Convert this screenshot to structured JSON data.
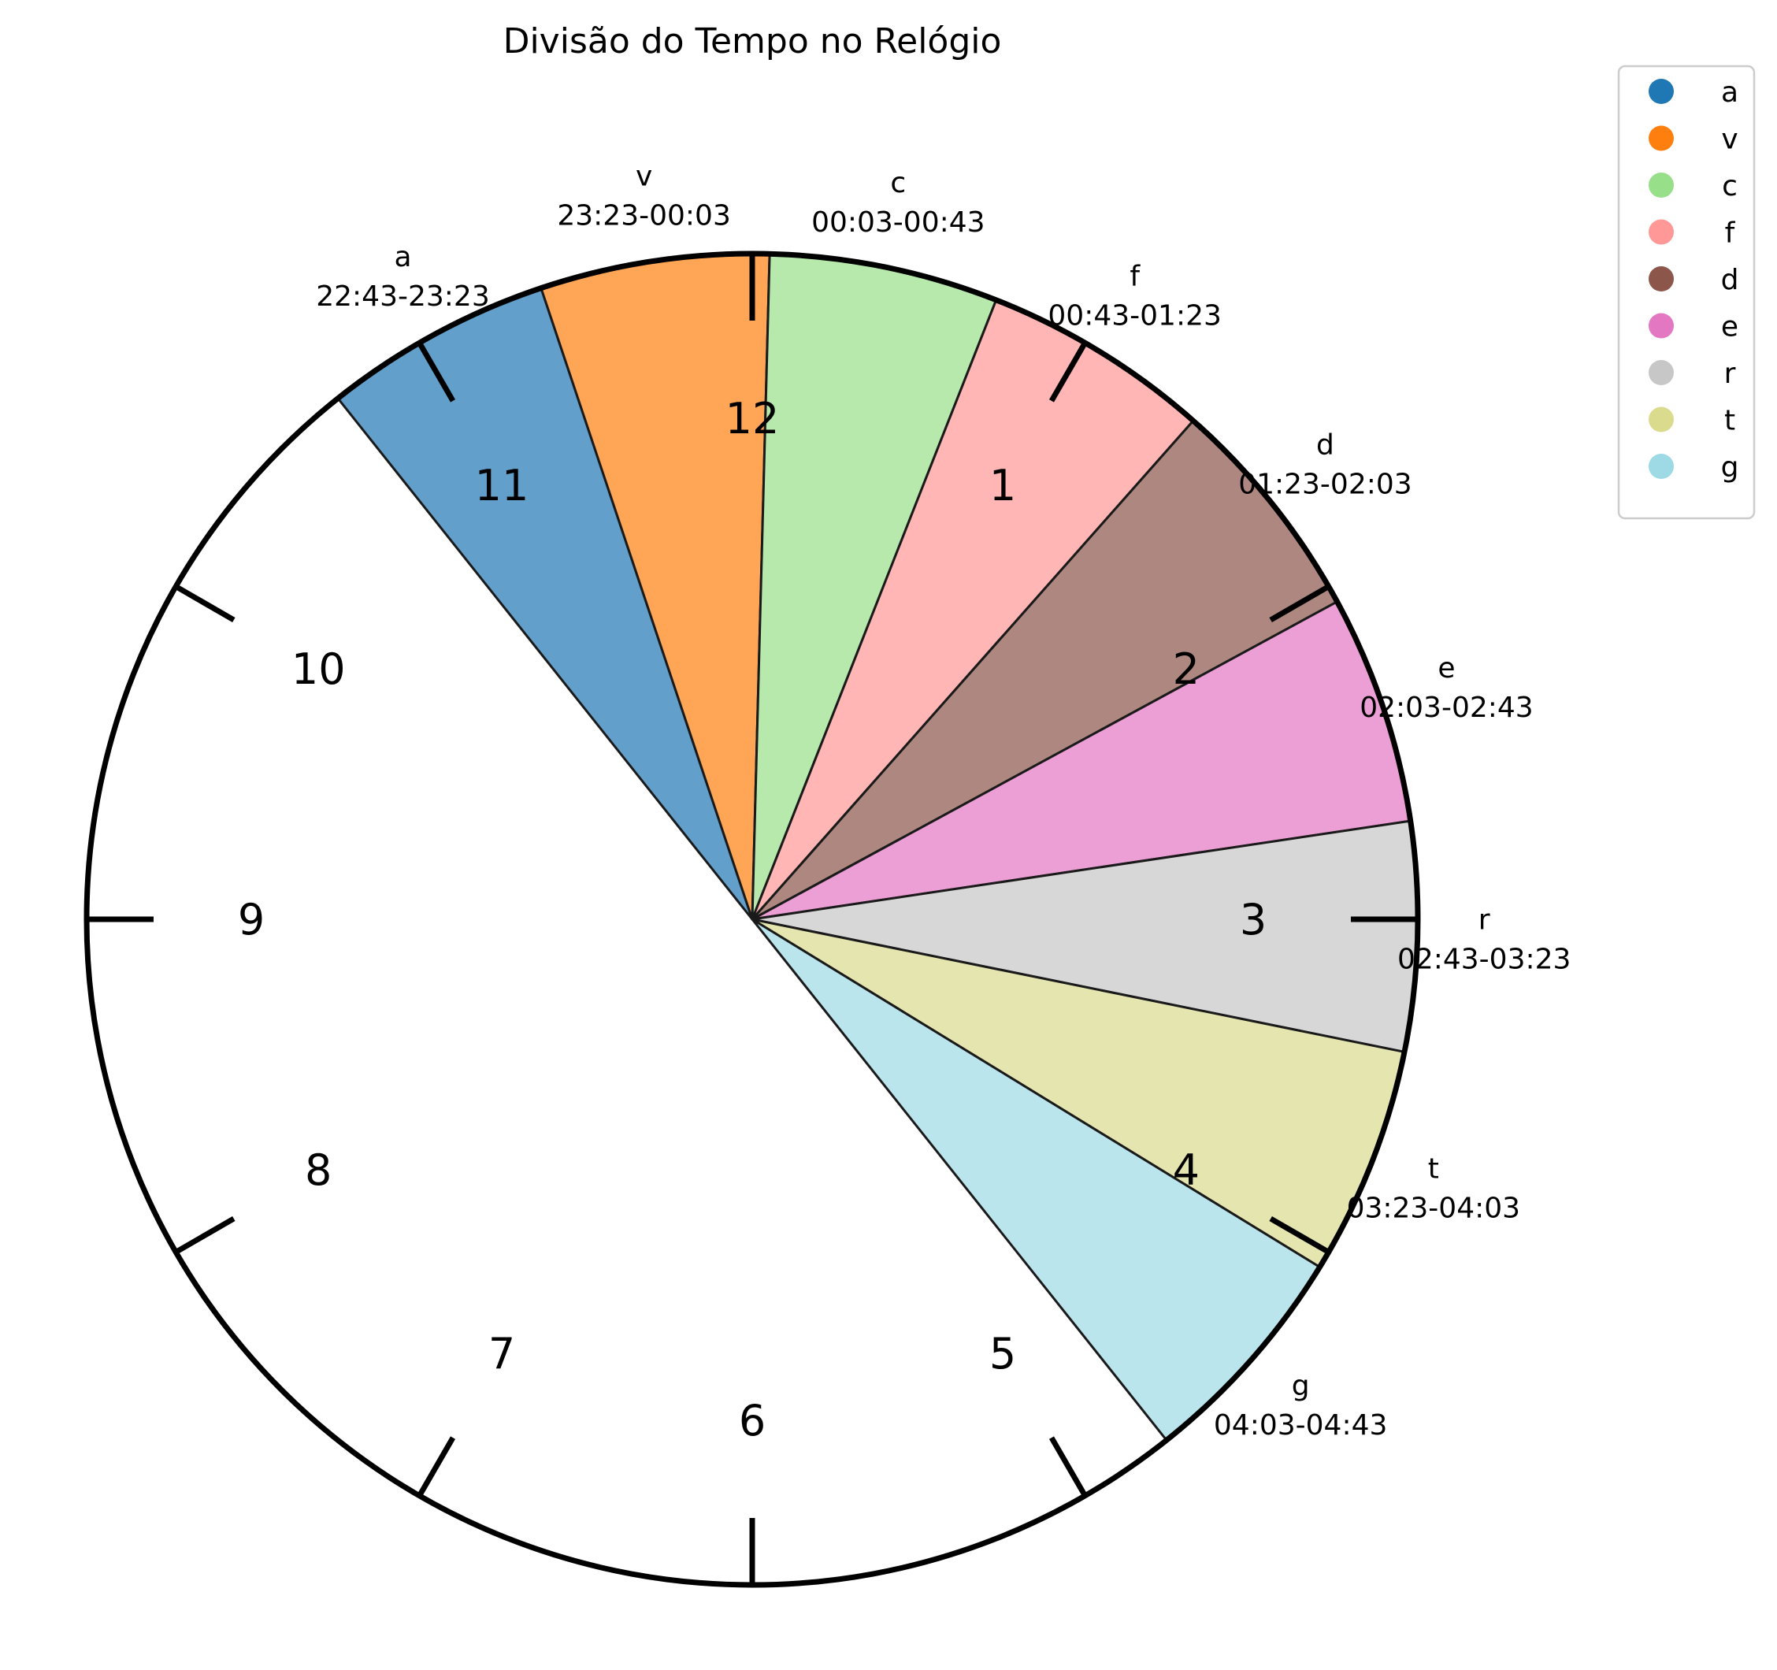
{
  "chart_data": {
    "type": "pie",
    "title": "Divisão do Tempo no Relógio",
    "clock": {
      "hour_numbers": [
        "12",
        "1",
        "2",
        "3",
        "4",
        "5",
        "6",
        "7",
        "8",
        "9",
        "10",
        "11"
      ]
    },
    "slices": [
      {
        "name": "a",
        "start": "22:43",
        "end": "23:23",
        "range_label": "22:43-23:23",
        "color": "#1f77b4",
        "fill": "#62a0cb"
      },
      {
        "name": "v",
        "start": "23:23",
        "end": "00:03",
        "range_label": "23:23-00:03",
        "color": "#ff7f0e",
        "fill": "#ffa556"
      },
      {
        "name": "c",
        "start": "00:03",
        "end": "00:43",
        "range_label": "00:03-00:43",
        "color": "#98df8a",
        "fill": "#b7e9ad"
      },
      {
        "name": "f",
        "start": "00:43",
        "end": "01:23",
        "range_label": "00:43-01:23",
        "color": "#ff9896",
        "fill": "#ffb6b5"
      },
      {
        "name": "d",
        "start": "01:23",
        "end": "02:03",
        "range_label": "01:23-02:03",
        "color": "#8c564b",
        "fill": "#ae8880"
      },
      {
        "name": "e",
        "start": "02:03",
        "end": "02:43",
        "range_label": "02:03-02:43",
        "color": "#e377c2",
        "fill": "#eb9fd4"
      },
      {
        "name": "r",
        "start": "02:43",
        "end": "03:23",
        "range_label": "02:43-03:23",
        "color": "#c7c7c7",
        "fill": "#d7d7d7"
      },
      {
        "name": "t",
        "start": "03:23",
        "end": "04:03",
        "range_label": "03:23-04:03",
        "color": "#dbdb8d",
        "fill": "#e5e5af"
      },
      {
        "name": "g",
        "start": "04:03",
        "end": "04:43",
        "range_label": "04:03-04:43",
        "color": "#9edae5",
        "fill": "#bbe5ed"
      }
    ],
    "legend": {
      "position": "top-right",
      "entries": [
        "a",
        "v",
        "c",
        "f",
        "d",
        "e",
        "r",
        "t",
        "g"
      ]
    }
  }
}
